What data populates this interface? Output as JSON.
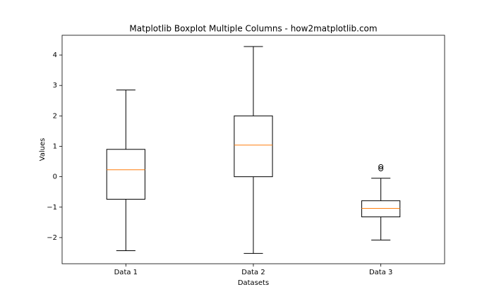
{
  "chart_data": {
    "type": "boxplot",
    "title": "Matplotlib Boxplot Multiple Columns - how2matplotlib.com",
    "xlabel": "Datasets",
    "ylabel": "Values",
    "categories": [
      "Data 1",
      "Data 2",
      "Data 3"
    ],
    "boxes": [
      {
        "whislo": -2.43,
        "q1": -0.74,
        "med": 0.23,
        "q3": 0.9,
        "whishi": 2.85,
        "fliers": []
      },
      {
        "whislo": -2.52,
        "q1": 0,
        "med": 1.04,
        "q3": 2.0,
        "whishi": 4.28,
        "fliers": []
      },
      {
        "whislo": -2.08,
        "q1": -1.32,
        "med": -1.04,
        "q3": -0.79,
        "whishi": -0.05,
        "fliers": [
          0.33,
          0.26
        ]
      }
    ],
    "box_color": "#000000",
    "median_color": "#ff7f0e",
    "ylim": [
      -2.86,
      4.65
    ],
    "yticks": [
      {
        "value": -2,
        "label": "−2"
      },
      {
        "value": -1,
        "label": "−1"
      },
      0,
      1,
      2,
      3,
      4
    ]
  }
}
